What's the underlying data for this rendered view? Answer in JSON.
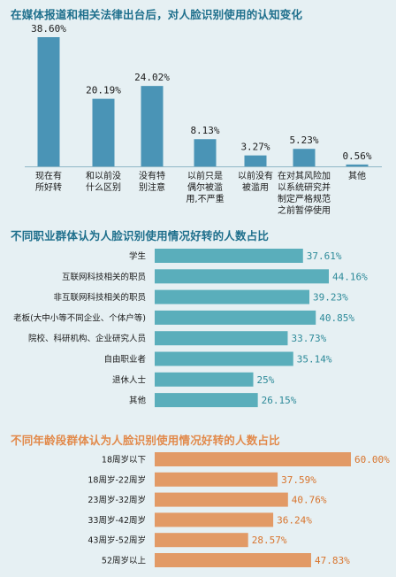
{
  "chart_data": [
    {
      "type": "bar",
      "title": "在媒体报道和相关法律出台后，对人脸识别使用的认知变化",
      "categories": [
        "现在有所好转",
        "和以前没什么区别",
        "没有特别注意",
        "以前只是偶尔被滥用,不严重",
        "以前没有被滥用",
        "在对其风险加以系统研究并制定严格规范之前暂停使用",
        "其他"
      ],
      "category_lines": [
        [
          "现在有",
          "所好转"
        ],
        [
          "和以前没",
          "什么区别"
        ],
        [
          "没有特",
          "别注意"
        ],
        [
          "以前只是",
          "偶尔被滥",
          "用,不严重"
        ],
        [
          "以前没有",
          "被滥用"
        ],
        [
          "在对其风险加",
          "以系统研究并",
          "制定严格规范",
          "之前暂停使用"
        ],
        [
          "其他"
        ]
      ],
      "values": [
        38.6,
        20.19,
        24.02,
        8.13,
        3.27,
        5.23,
        0.56
      ],
      "value_labels": [
        "38.60%",
        "20.19%",
        "24.02%",
        "8.13%",
        "3.27%",
        "5.23%",
        "0.56%"
      ],
      "unit": "%",
      "color": "#4a94b6"
    },
    {
      "type": "bar",
      "orientation": "horizontal",
      "title": "不同职业群体认为人脸识别使用情况好转的人数占比",
      "categories": [
        "学生",
        "互联网科技相关的职员",
        "非互联网科技相关的职员",
        "老板(大中小等不同企业、个体户等)",
        "院校、科研机构、企业研究人员",
        "自由职业者",
        "退休人士",
        "其他"
      ],
      "values": [
        37.61,
        44.16,
        39.23,
        40.85,
        33.73,
        35.14,
        25,
        26.15
      ],
      "value_labels": [
        "37.61%",
        "44.16%",
        "39.23%",
        "40.85%",
        "33.73%",
        "35.14%",
        "25%",
        "26.15%"
      ],
      "unit": "%",
      "color": "#5aaebb"
    },
    {
      "type": "bar",
      "orientation": "horizontal",
      "title": "不同年龄段群体认为人脸识别使用情况好转的人数占比",
      "categories": [
        "18周岁以下",
        "18周岁-22周岁",
        "23周岁-32周岁",
        "33周岁-42周岁",
        "43周岁-52周岁",
        "52周岁以上"
      ],
      "values": [
        60.0,
        37.59,
        40.76,
        36.24,
        28.57,
        47.83
      ],
      "value_labels": [
        "60.00%",
        "37.59%",
        "40.76%",
        "36.24%",
        "28.57%",
        "47.83%"
      ],
      "unit": "%",
      "color": "#e29a66"
    }
  ]
}
